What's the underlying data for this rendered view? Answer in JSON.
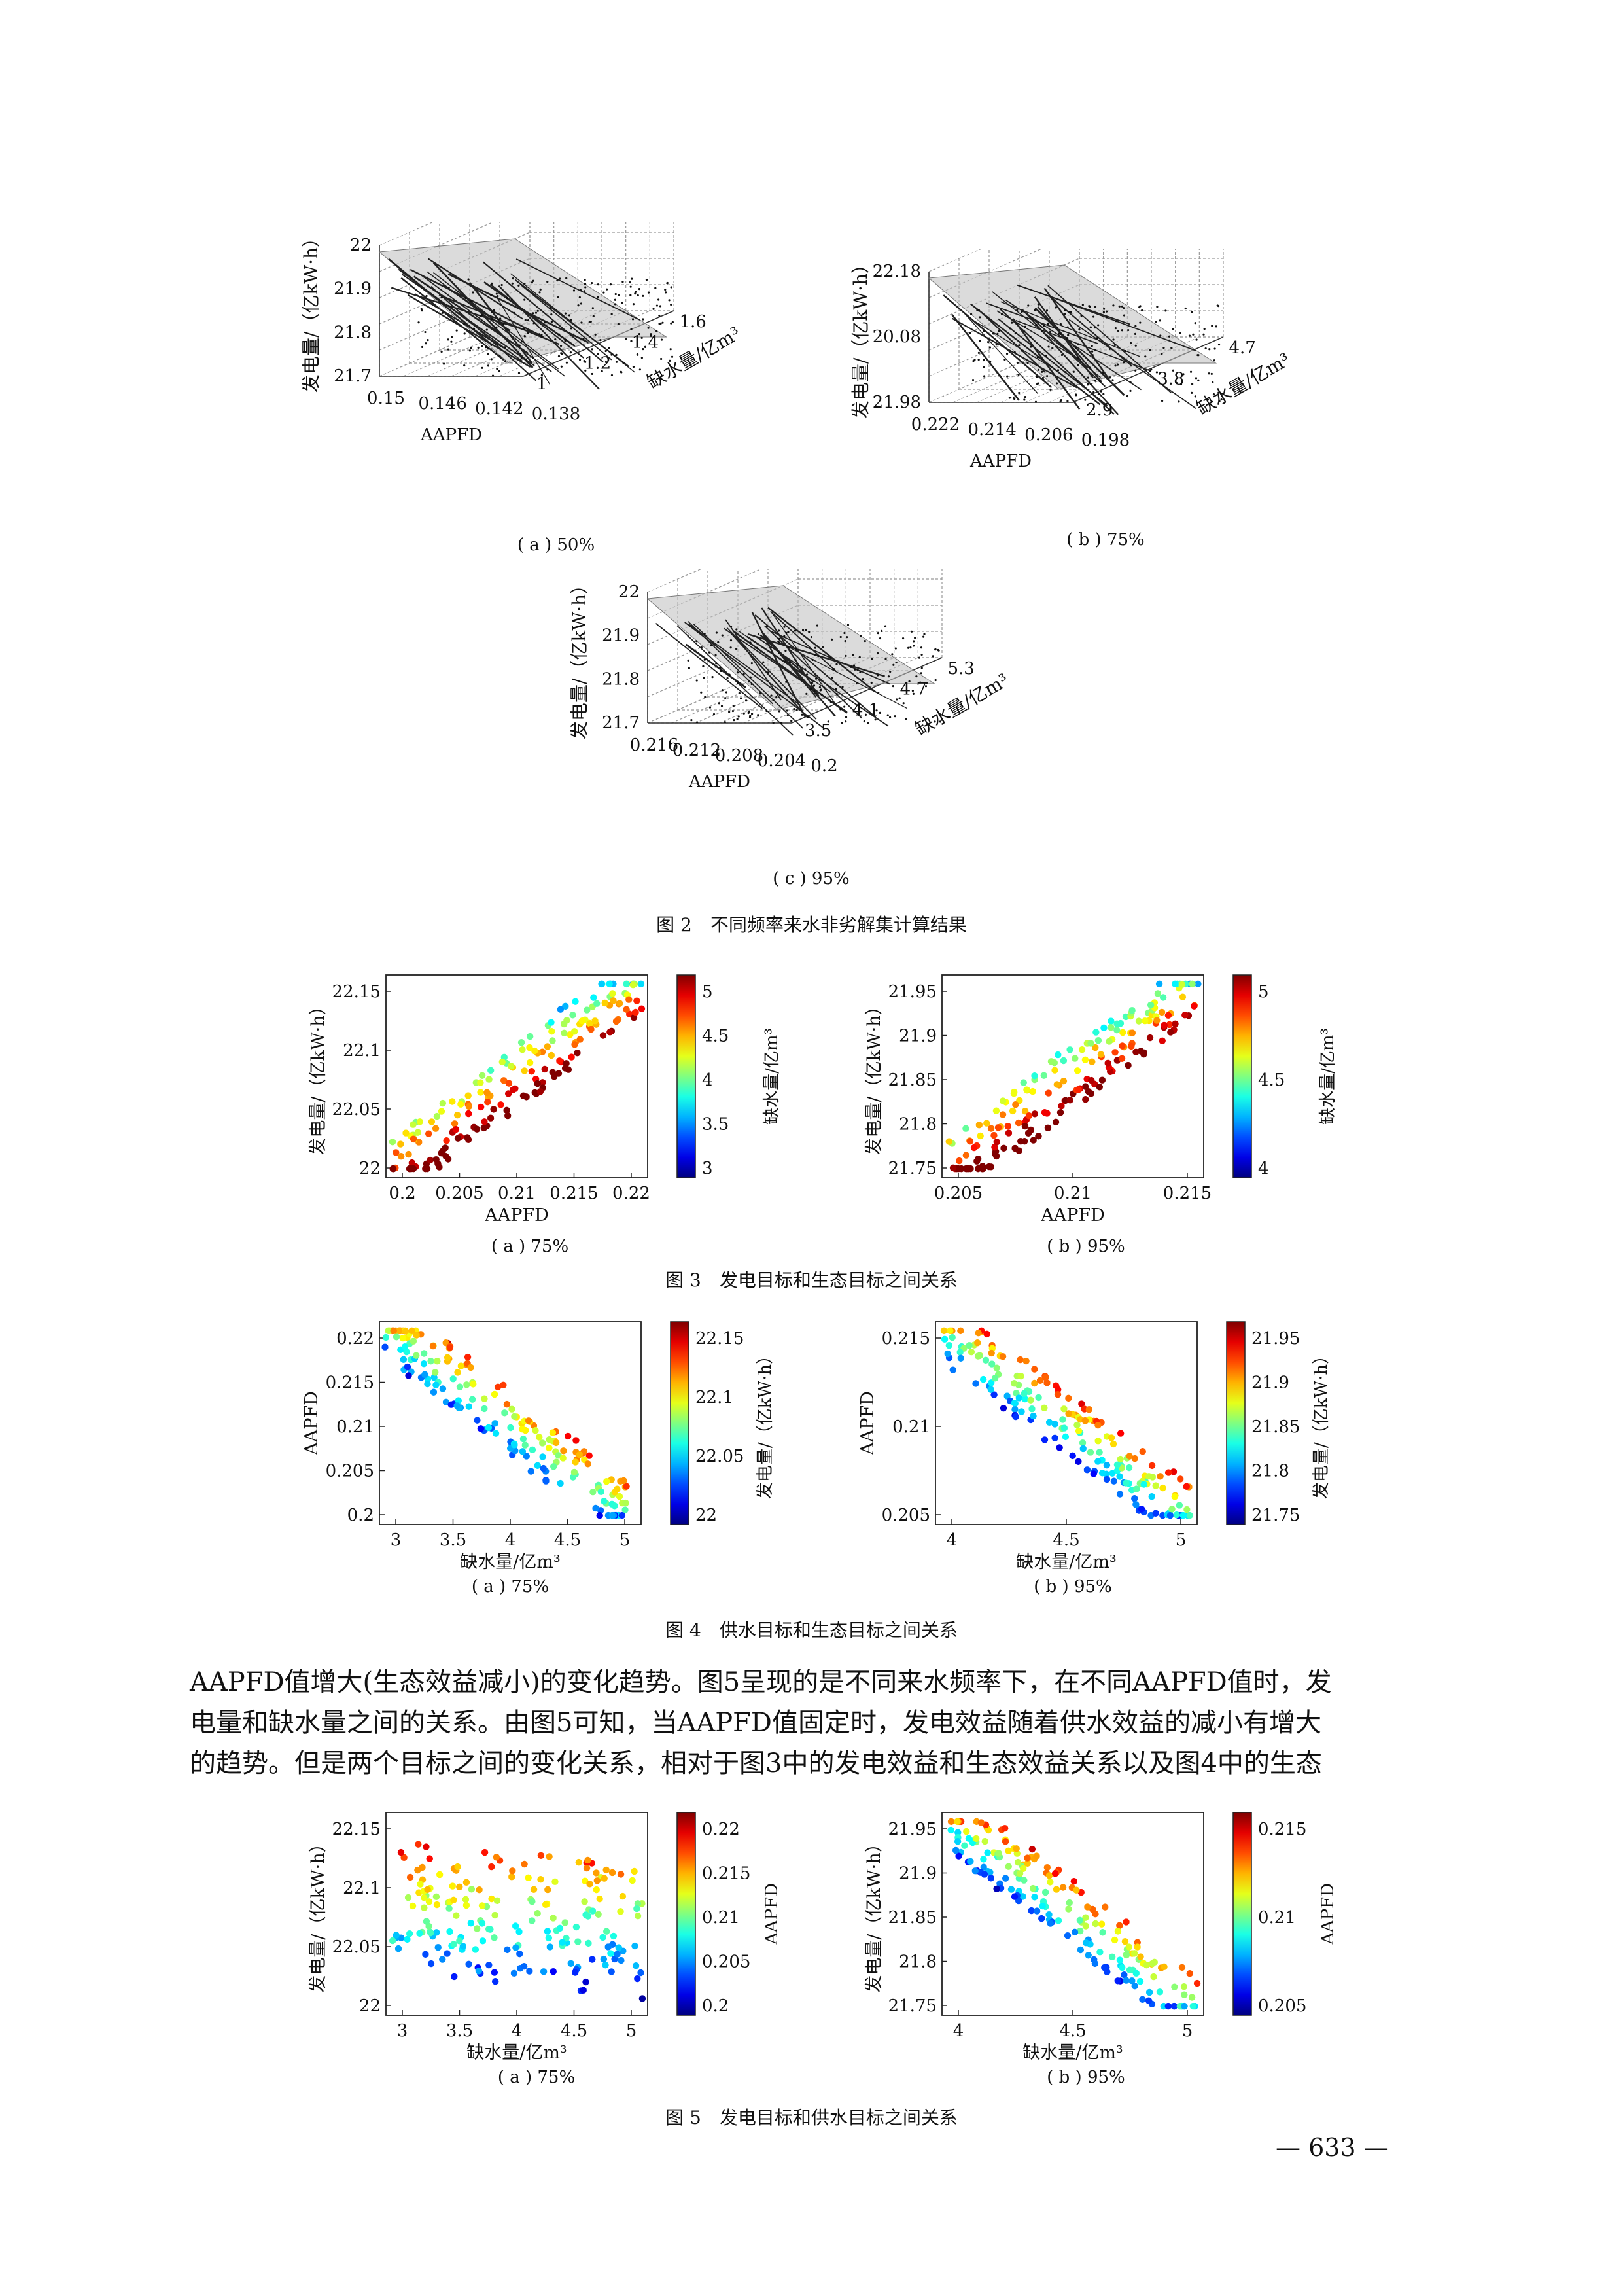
{
  "fig2": {
    "caption": "图 2　不同频率来水非劣解集计算结果",
    "plots": [
      {
        "id": "a",
        "sub": "( a ) 50%",
        "zlabel": "发电量/（亿kW·h）",
        "xlabel": "AAPFD",
        "ylabel": "缺水量/亿m³",
        "zticks": [
          "22",
          "21.9",
          "21.8",
          "21.7"
        ],
        "xticks": [
          "0.15",
          "0.146",
          "0.142",
          "0.138"
        ],
        "yticks": [
          "1",
          "1.2",
          "1.4",
          "1.6"
        ]
      },
      {
        "id": "b",
        "sub": "( b ) 75%",
        "zlabel": "发电量/（亿kW·h）",
        "xlabel": "AAPFD",
        "ylabel": "缺水量/亿m³",
        "zticks": [
          "22.18",
          "20.08",
          "21.98"
        ],
        "xticks": [
          "0.222",
          "0.214",
          "0.206",
          "0.198"
        ],
        "yticks": [
          "2.9",
          "3.8",
          "4.7"
        ]
      },
      {
        "id": "c",
        "sub": "( c ) 95%",
        "zlabel": "发电量/（亿kW·h）",
        "xlabel": "AAPFD",
        "ylabel": "缺水量/亿m³",
        "zticks": [
          "22",
          "21.9",
          "21.8",
          "21.7"
        ],
        "xticks": [
          "0.216",
          "0.212",
          "0.208",
          "0.204",
          "0.2"
        ],
        "yticks": [
          "3.5",
          "4.1",
          "4.7",
          "5.3"
        ]
      }
    ]
  },
  "fig3": {
    "caption": "图 3　发电目标和生态目标之间关系",
    "plots": [
      {
        "id": "a",
        "sub": "( a ) 75%",
        "xlabel": "AAPFD",
        "ylabel": "发电量/（亿kW·h）",
        "cblabel": "缺水量/亿m³",
        "xticks": [
          "0.2",
          "0.205",
          "0.21",
          "0.215",
          "0.22"
        ],
        "yticks": [
          "22",
          "22.05",
          "22.1",
          "22.15"
        ],
        "cbticks": [
          "3",
          "3.5",
          "4",
          "4.5",
          "5"
        ]
      },
      {
        "id": "b",
        "sub": "( b ) 95%",
        "xlabel": "AAPFD",
        "ylabel": "发电量/（亿kW·h）",
        "cblabel": "缺水量/亿m³",
        "xticks": [
          "0.205",
          "0.21",
          "0.215"
        ],
        "yticks": [
          "21.75",
          "21.8",
          "21.85",
          "21.9",
          "21.95"
        ],
        "cbticks": [
          "4",
          "4.5",
          "5"
        ]
      }
    ]
  },
  "fig4": {
    "caption": "图 4　供水目标和生态目标之间关系",
    "plots": [
      {
        "id": "a",
        "sub": "( a ) 75%",
        "xlabel": "缺水量/亿m³",
        "ylabel": "AAPFD",
        "cblabel": "发电量/（亿kW·h）",
        "xticks": [
          "3",
          "3.5",
          "4",
          "4.5",
          "5"
        ],
        "yticks": [
          "0.2",
          "0.205",
          "0.21",
          "0.215",
          "0.22"
        ],
        "cbticks": [
          "22",
          "22.05",
          "22.1",
          "22.15"
        ]
      },
      {
        "id": "b",
        "sub": "( b ) 95%",
        "xlabel": "缺水量/亿m³",
        "ylabel": "AAPFD",
        "cblabel": "发电量/（亿kW·h）",
        "xticks": [
          "4",
          "4.5",
          "5"
        ],
        "yticks": [
          "0.205",
          "0.21",
          "0.215"
        ],
        "cbticks": [
          "21.75",
          "21.8",
          "21.85",
          "21.9",
          "21.95"
        ]
      }
    ]
  },
  "fig5": {
    "caption": "图 5　发电目标和供水目标之间关系",
    "plots": [
      {
        "id": "a",
        "sub": "( a ) 75%",
        "xlabel": "缺水量/亿m³",
        "ylabel": "发电量/（亿kW·h）",
        "cblabel": "AAPFD",
        "xticks": [
          "3",
          "3.5",
          "4",
          "4.5",
          "5"
        ],
        "yticks": [
          "22",
          "22.05",
          "22.1",
          "22.15"
        ],
        "cbticks": [
          "0.2",
          "0.205",
          "0.21",
          "0.215",
          "0.22"
        ]
      },
      {
        "id": "b",
        "sub": "( b ) 95%",
        "xlabel": "缺水量/亿m³",
        "ylabel": "发电量/（亿kW·h）",
        "cblabel": "AAPFD",
        "xticks": [
          "4",
          "4.5",
          "5"
        ],
        "yticks": [
          "21.75",
          "21.8",
          "21.85",
          "21.9",
          "21.95"
        ],
        "cbticks": [
          "0.205",
          "0.21",
          "0.215"
        ]
      }
    ]
  },
  "paragraph": [
    "AAPFD值增大(生态效益减小)的变化趋势。图5呈现的是不同来水频率下，在不同AAPFD值时，发",
    "电量和缺水量之间的关系。由图5可知，当AAPFD值固定时，发电效益随着供水效益的减小有增大",
    "的趋势。但是两个目标之间的变化关系，相对于图3中的发电效益和生态效益关系以及图4中的生态"
  ],
  "page_number": "— 633 —"
}
